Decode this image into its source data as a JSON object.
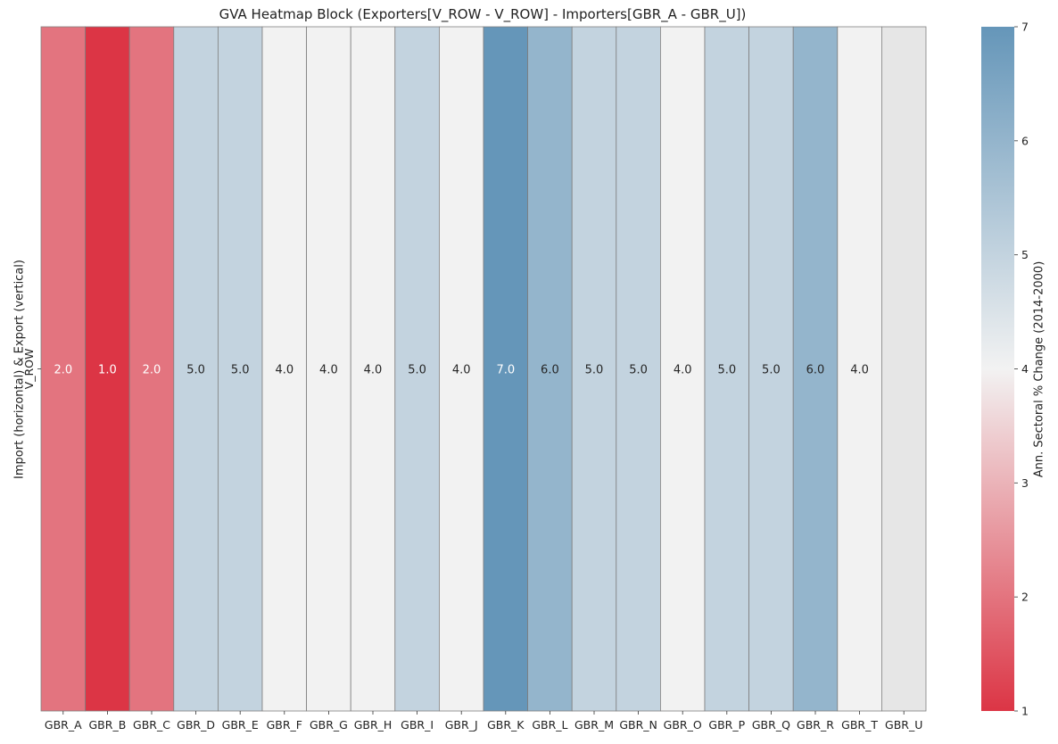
{
  "chart_data": {
    "type": "heatmap",
    "title": "GVA Heatmap Block (Exporters[V_ROW - V_ROW] - Importers[GBR_A - GBR_U])",
    "ylabel": "Import (horizontal) & Export (vertical)",
    "rows": [
      "V_ROW"
    ],
    "columns": [
      "GBR_A",
      "GBR_B",
      "GBR_C",
      "GBR_D",
      "GBR_E",
      "GBR_F",
      "GBR_G",
      "GBR_H",
      "GBR_I",
      "GBR_J",
      "GBR_K",
      "GBR_L",
      "GBR_M",
      "GBR_N",
      "GBR_O",
      "GBR_P",
      "GBR_Q",
      "GBR_R",
      "GBR_T",
      "GBR_U"
    ],
    "values": [
      [
        2.0,
        1.0,
        2.0,
        5.0,
        5.0,
        4.0,
        4.0,
        4.0,
        5.0,
        4.0,
        7.0,
        6.0,
        5.0,
        5.0,
        4.0,
        5.0,
        5.0,
        6.0,
        4.0,
        null
      ]
    ],
    "cell_labels": [
      [
        "2.0",
        "1.0",
        "2.0",
        "5.0",
        "5.0",
        "4.0",
        "4.0",
        "4.0",
        "5.0",
        "4.0",
        "7.0",
        "6.0",
        "5.0",
        "5.0",
        "4.0",
        "5.0",
        "5.0",
        "6.0",
        "4.0",
        ""
      ]
    ],
    "colorbar": {
      "label": "Ann. Sectoral % Change (2014-2000)",
      "min": 1,
      "max": 7,
      "ticks": [
        "1",
        "2",
        "3",
        "4",
        "5",
        "6",
        "7"
      ],
      "colors": {
        "low": "#dc3545",
        "mid": "#f2f2f2",
        "high": "#6596b9",
        "missing": "#e6e6e6",
        "cell_border": "#7f7f7f"
      }
    }
  }
}
